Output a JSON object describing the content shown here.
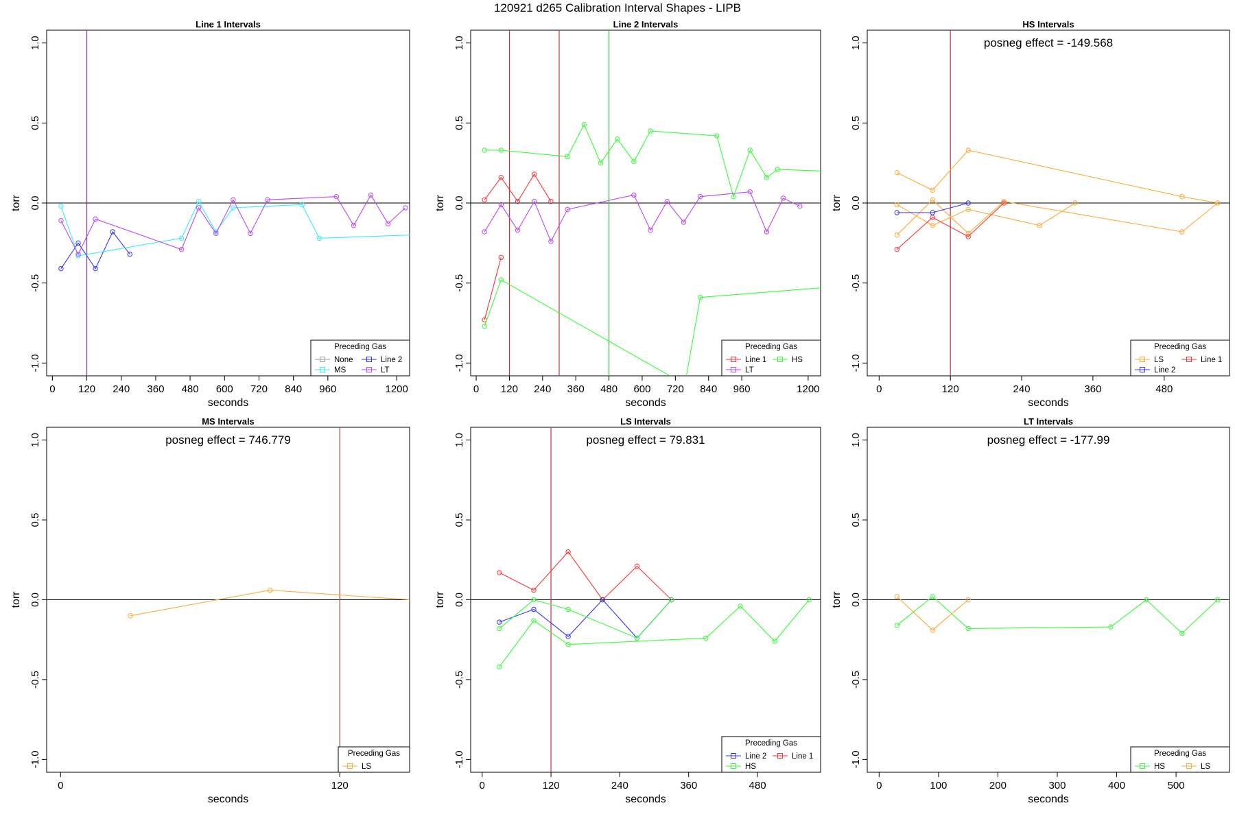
{
  "figure": {
    "title": "120921   d265   Calibration Interval Shapes - LIPB"
  },
  "colors": {
    "None": "#999999",
    "Line 1": "#ff3333",
    "Line 2": "#3333ff",
    "HS": "#33ff33",
    "MS": "#33eeff",
    "LS": "#ffaa33",
    "LT": "#bb44ff",
    "ref_red": "#cc3333",
    "ref_green": "#33bb33",
    "ref_purple": "#883399"
  },
  "chart_data": [
    {
      "type": "line",
      "title": "Line 1 Intervals",
      "xlabel": "seconds",
      "ylabel": "torr",
      "xlim": [
        -20,
        1245
      ],
      "ylim": [
        -1.08,
        1.08
      ],
      "xticks": [
        0,
        120,
        240,
        360,
        480,
        600,
        720,
        840,
        960,
        1200
      ],
      "yticks": [
        -1.0,
        -0.5,
        0.0,
        0.5,
        1.0
      ],
      "ytick_labels": [
        "-1.0",
        "-0.5",
        "0.0",
        "0.5",
        "1.0"
      ],
      "vlines": [
        {
          "x": 120,
          "color": "ref_purple"
        }
      ],
      "legend": {
        "title": "Preceding Gas",
        "position": "bottom-right",
        "columns": 2,
        "entries": [
          "None",
          "MS",
          "Line 2",
          "LT"
        ]
      },
      "series": [
        {
          "name": "Line 2",
          "segments": [
            [
              [
                30,
                -0.41
              ],
              [
                90,
                -0.25
              ],
              [
                150,
                -0.41
              ],
              [
                210,
                -0.18
              ],
              [
                270,
                -0.32
              ]
            ]
          ]
        },
        {
          "name": "MS",
          "segments": [
            [
              [
                30,
                -0.02
              ],
              [
                90,
                -0.33
              ],
              [
                450,
                -0.22
              ],
              [
                510,
                0.01
              ],
              [
                570,
                -0.18
              ],
              [
                630,
                -0.03
              ],
              [
                870,
                -0.01
              ],
              [
                930,
                -0.22
              ],
              [
                1245,
                -0.2
              ]
            ]
          ]
        },
        {
          "name": "LT",
          "segments": [
            [
              [
                30,
                -0.11
              ],
              [
                90,
                -0.32
              ],
              [
                150,
                -0.1
              ],
              [
                450,
                -0.29
              ],
              [
                510,
                -0.03
              ],
              [
                570,
                -0.19
              ],
              [
                630,
                0.02
              ],
              [
                690,
                -0.19
              ],
              [
                750,
                0.02
              ],
              [
                990,
                0.04
              ],
              [
                1050,
                -0.14
              ],
              [
                1110,
                0.05
              ],
              [
                1170,
                -0.13
              ],
              [
                1230,
                -0.03
              ]
            ]
          ]
        }
      ]
    },
    {
      "type": "line",
      "title": "Line 2 Intervals",
      "xlabel": "seconds",
      "ylabel": "torr",
      "xlim": [
        -20,
        1245
      ],
      "ylim": [
        -1.08,
        1.08
      ],
      "xticks": [
        0,
        120,
        240,
        360,
        480,
        600,
        720,
        840,
        960,
        1200
      ],
      "yticks": [
        -1.0,
        -0.5,
        0.0,
        0.5,
        1.0
      ],
      "ytick_labels": [
        "-1.0",
        "-0.5",
        "0.0",
        "0.5",
        "1.0"
      ],
      "vlines": [
        {
          "x": 120,
          "color": "ref_red"
        },
        {
          "x": 300,
          "color": "ref_red"
        },
        {
          "x": 480,
          "color": "ref_green"
        }
      ],
      "legend": {
        "title": "Preceding Gas",
        "position": "bottom-right",
        "columns": 2,
        "entries": [
          "Line 1",
          "LT",
          "HS"
        ]
      },
      "series": [
        {
          "name": "Line 1",
          "segments": [
            [
              [
                30,
                0.02
              ],
              [
                90,
                0.16
              ],
              [
                150,
                0.01
              ],
              [
                210,
                0.18
              ],
              [
                270,
                0.01
              ]
            ],
            [
              [
                30,
                -0.73
              ],
              [
                90,
                -0.34
              ]
            ]
          ]
        },
        {
          "name": "HS",
          "segments": [
            [
              [
                30,
                0.33
              ],
              [
                90,
                0.33
              ],
              [
                330,
                0.29
              ],
              [
                390,
                0.49
              ],
              [
                450,
                0.25
              ],
              [
                510,
                0.4
              ],
              [
                570,
                0.26
              ],
              [
                630,
                0.45
              ],
              [
                870,
                0.42
              ],
              [
                930,
                0.04
              ],
              [
                990,
                0.33
              ],
              [
                1050,
                0.16
              ],
              [
                1090,
                0.21
              ],
              [
                1245,
                0.2
              ]
            ],
            [
              [
                30,
                -0.77
              ],
              [
                90,
                -0.48
              ],
              [
                700,
                -1.08
              ]
            ],
            [
              [
                760,
                -1.08
              ],
              [
                810,
                -0.59
              ],
              [
                1245,
                -0.53
              ]
            ]
          ]
        },
        {
          "name": "LT",
          "segments": [
            [
              [
                30,
                -0.18
              ],
              [
                90,
                -0.01
              ],
              [
                150,
                -0.17
              ],
              [
                210,
                0.01
              ],
              [
                270,
                -0.24
              ],
              [
                330,
                -0.04
              ],
              [
                570,
                0.05
              ],
              [
                630,
                -0.17
              ],
              [
                690,
                0.01
              ],
              [
                750,
                -0.12
              ],
              [
                810,
                0.04
              ],
              [
                990,
                0.07
              ],
              [
                1050,
                -0.18
              ],
              [
                1110,
                0.03
              ],
              [
                1170,
                -0.02
              ]
            ]
          ]
        }
      ]
    },
    {
      "type": "line",
      "title": "HS Intervals",
      "annotation": "posneg effect = -149.568",
      "xlabel": "seconds",
      "ylabel": "torr",
      "xlim": [
        -20,
        590
      ],
      "ylim": [
        -1.08,
        1.08
      ],
      "xticks": [
        0,
        120,
        240,
        360,
        480
      ],
      "yticks": [
        -1.0,
        -0.5,
        0.0,
        0.5,
        1.0
      ],
      "ytick_labels": [
        "-1.0",
        "-0.5",
        "0.0",
        "0.5",
        "1.0"
      ],
      "vlines": [
        {
          "x": 120,
          "color": "ref_red"
        }
      ],
      "legend": {
        "title": "Preceding Gas",
        "position": "bottom-right",
        "columns": 2,
        "entries": [
          "LS",
          "Line 2",
          "Line 1"
        ]
      },
      "series": [
        {
          "name": "LS",
          "segments": [
            [
              [
                30,
                0.19
              ],
              [
                90,
                0.08
              ],
              [
                150,
                0.33
              ],
              [
                510,
                0.04
              ],
              [
                570,
                0.0
              ]
            ],
            [
              [
                30,
                -0.01
              ],
              [
                90,
                -0.14
              ],
              [
                150,
                -0.04
              ],
              [
                270,
                -0.14
              ],
              [
                330,
                0.0
              ]
            ],
            [
              [
                30,
                -0.2
              ],
              [
                90,
                0.02
              ],
              [
                150,
                -0.19
              ],
              [
                210,
                0.01
              ],
              [
                510,
                -0.18
              ],
              [
                570,
                0.0
              ]
            ]
          ]
        },
        {
          "name": "Line 2",
          "segments": [
            [
              [
                30,
                -0.06
              ],
              [
                90,
                -0.06
              ],
              [
                150,
                0.0
              ]
            ]
          ]
        },
        {
          "name": "Line 1",
          "segments": [
            [
              [
                30,
                -0.29
              ],
              [
                90,
                -0.09
              ],
              [
                150,
                -0.21
              ],
              [
                210,
                0.0
              ]
            ]
          ]
        }
      ]
    },
    {
      "type": "line",
      "title": "MS Intervals",
      "annotation": "posneg effect = 746.779",
      "xlabel": "seconds",
      "ylabel": "torr",
      "xlim": [
        -6,
        150
      ],
      "ylim": [
        -1.08,
        1.08
      ],
      "xticks": [
        0,
        120
      ],
      "yticks": [
        -1.0,
        -0.5,
        0.0,
        0.5,
        1.0
      ],
      "ytick_labels": [
        "-1.0",
        "-0.5",
        "0.0",
        "0.5",
        "1.0"
      ],
      "vlines": [
        {
          "x": 120,
          "color": "ref_red"
        }
      ],
      "legend": {
        "title": "Preceding Gas",
        "position": "bottom-right",
        "columns": 1,
        "entries": [
          "LS"
        ]
      },
      "series": [
        {
          "name": "LS",
          "segments": [
            [
              [
                30,
                -0.1
              ],
              [
                90,
                0.06
              ],
              [
                150,
                0.0
              ]
            ]
          ]
        }
      ]
    },
    {
      "type": "line",
      "title": "LS Intervals",
      "annotation": "posneg effect = 79.831",
      "xlabel": "seconds",
      "ylabel": "torr",
      "xlim": [
        -20,
        590
      ],
      "ylim": [
        -1.08,
        1.08
      ],
      "xticks": [
        0,
        120,
        240,
        360,
        480
      ],
      "yticks": [
        -1.0,
        -0.5,
        0.0,
        0.5,
        1.0
      ],
      "ytick_labels": [
        "-1.0",
        "-0.5",
        "0.0",
        "0.5",
        "1.0"
      ],
      "vlines": [
        {
          "x": 120,
          "color": "ref_red"
        }
      ],
      "legend": {
        "title": "Preceding Gas",
        "position": "bottom-right",
        "columns": 2,
        "entries": [
          "Line 2",
          "HS",
          "Line 1"
        ]
      },
      "series": [
        {
          "name": "Line 1",
          "segments": [
            [
              [
                30,
                0.17
              ],
              [
                90,
                0.06
              ],
              [
                150,
                0.3
              ],
              [
                210,
                0.0
              ],
              [
                270,
                0.21
              ],
              [
                330,
                0.0
              ]
            ]
          ]
        },
        {
          "name": "Line 2",
          "segments": [
            [
              [
                30,
                -0.14
              ],
              [
                90,
                -0.06
              ],
              [
                150,
                -0.23
              ],
              [
                210,
                0.0
              ],
              [
                270,
                -0.24
              ],
              [
                330,
                0.0
              ]
            ]
          ]
        },
        {
          "name": "HS",
          "segments": [
            [
              [
                30,
                -0.18
              ],
              [
                90,
                0.0
              ],
              [
                150,
                -0.06
              ],
              [
                270,
                -0.24
              ],
              [
                330,
                0.0
              ]
            ],
            [
              [
                30,
                -0.42
              ],
              [
                90,
                -0.13
              ],
              [
                150,
                -0.28
              ],
              [
                390,
                -0.24
              ],
              [
                450,
                -0.04
              ],
              [
                510,
                -0.26
              ],
              [
                570,
                0.0
              ]
            ]
          ]
        }
      ]
    },
    {
      "type": "line",
      "title": "LT Intervals",
      "annotation": "posneg effect = -177.99",
      "xlabel": "seconds",
      "ylabel": "torr",
      "xlim": [
        -20,
        590
      ],
      "ylim": [
        -1.08,
        1.08
      ],
      "xticks": [
        0,
        100,
        200,
        300,
        400,
        500
      ],
      "yticks": [
        -1.0,
        -0.5,
        0.0,
        0.5,
        1.0
      ],
      "ytick_labels": [
        "-1.0",
        "-0.5",
        "0.0",
        "0.5",
        "1.0"
      ],
      "vlines": [],
      "legend": {
        "title": "Preceding Gas",
        "position": "bottom-right",
        "columns": 2,
        "entries": [
          "HS",
          "LS"
        ]
      },
      "series": [
        {
          "name": "HS",
          "segments": [
            [
              [
                30,
                -0.16
              ],
              [
                90,
                0.02
              ],
              [
                150,
                -0.18
              ],
              [
                390,
                -0.17
              ],
              [
                450,
                0.0
              ],
              [
                510,
                -0.21
              ],
              [
                570,
                0.0
              ]
            ]
          ]
        },
        {
          "name": "LS",
          "segments": [
            [
              [
                30,
                0.02
              ],
              [
                90,
                -0.19
              ],
              [
                150,
                0.0
              ]
            ]
          ]
        }
      ]
    }
  ]
}
